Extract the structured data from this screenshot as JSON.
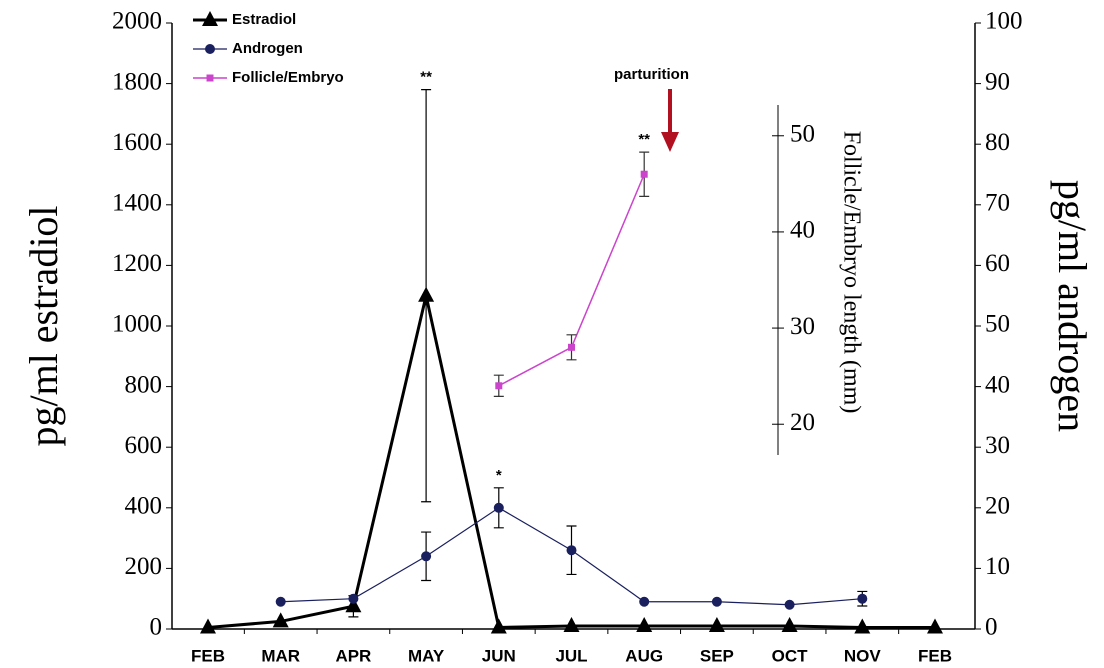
{
  "chart_data": {
    "type": "line",
    "categories": [
      "FEB",
      "MAR",
      "APR",
      "MAY",
      "JUN",
      "JUL",
      "AUG",
      "SEP",
      "OCT",
      "NOV",
      "FEB"
    ],
    "ylabel": "pg/ml estradiol",
    "y2label": "pg/ml androgen",
    "y3label": "Follicle/Embryo length (mm)",
    "ylim": [
      0,
      2000
    ],
    "yticks": [
      0,
      200,
      400,
      600,
      800,
      1000,
      1200,
      1400,
      1600,
      1800,
      2000
    ],
    "y2lim": [
      0,
      100
    ],
    "y2ticks": [
      0,
      10,
      20,
      30,
      40,
      50,
      60,
      70,
      80,
      90,
      100
    ],
    "y3lim": [
      16.8,
      53.2
    ],
    "y3ticks": [
      20,
      30,
      40,
      50
    ],
    "annotation": "parturition",
    "series": [
      {
        "name": "Estradiol",
        "color": "#000000",
        "axis": "y",
        "marker": "triangle",
        "values": [
          5,
          25,
          75,
          1100,
          5,
          10,
          10,
          10,
          10,
          5,
          5
        ],
        "errors": [
          null,
          null,
          35,
          680,
          null,
          null,
          null,
          null,
          null,
          null,
          null
        ],
        "significance": [
          null,
          null,
          null,
          "**",
          null,
          null,
          null,
          null,
          null,
          null,
          null
        ]
      },
      {
        "name": "Androgen",
        "color": "#1a1f5e",
        "axis": "y2",
        "marker": "circle",
        "values": [
          null,
          4.5,
          5,
          12,
          20,
          13,
          4.5,
          4.5,
          4,
          5,
          null
        ],
        "errors": [
          null,
          null,
          null,
          4,
          3.3,
          4,
          null,
          null,
          null,
          1.2,
          null
        ],
        "significance": [
          null,
          null,
          null,
          null,
          "*",
          null,
          null,
          null,
          null,
          null,
          null
        ]
      },
      {
        "name": "Follicle/Embryo",
        "color": "#cc44cc",
        "axis": "y3",
        "marker": "square",
        "values": [
          null,
          null,
          null,
          null,
          24,
          28,
          46,
          null,
          null,
          null,
          null
        ],
        "errors": [
          null,
          null,
          null,
          null,
          1.1,
          1.3,
          2.3,
          null,
          null,
          null,
          null
        ],
        "significance": [
          null,
          null,
          null,
          null,
          null,
          null,
          "**",
          null,
          null,
          null,
          null
        ]
      }
    ]
  }
}
